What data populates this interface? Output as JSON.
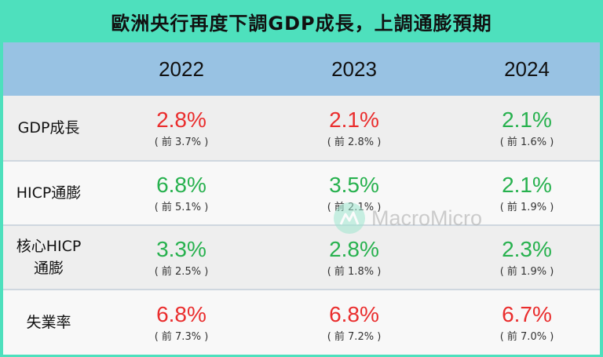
{
  "title": "歐洲央行再度下調GDP成長，上調通膨預期",
  "years": [
    "2022",
    "2023",
    "2024"
  ],
  "rows": [
    {
      "label": "GDP成長",
      "cells": [
        {
          "value": "2.8%",
          "prev": "( 前 3.7% )",
          "color": "#ea2d2d"
        },
        {
          "value": "2.1%",
          "prev": "( 前 2.8% )",
          "color": "#ea2d2d"
        },
        {
          "value": "2.1%",
          "prev": "( 前 1.6% )",
          "color": "#27b14e"
        }
      ]
    },
    {
      "label": "HICP通膨",
      "cells": [
        {
          "value": "6.8%",
          "prev": "( 前 5.1% )",
          "color": "#27b14e"
        },
        {
          "value": "3.5%",
          "prev": "( 前 2.1% )",
          "color": "#27b14e"
        },
        {
          "value": "2.1%",
          "prev": "( 前 1.9% )",
          "color": "#27b14e"
        }
      ]
    },
    {
      "label_line1": "核心HICP",
      "label_line2": "通膨",
      "cells": [
        {
          "value": "3.3%",
          "prev": "( 前 2.5% )",
          "color": "#27b14e"
        },
        {
          "value": "2.8%",
          "prev": "( 前 1.8% )",
          "color": "#27b14e"
        },
        {
          "value": "2.3%",
          "prev": "( 前 1.9% )",
          "color": "#27b14e"
        }
      ]
    },
    {
      "label": "失業率",
      "cells": [
        {
          "value": "6.8%",
          "prev": "( 前 7.3% )",
          "color": "#ea2d2d"
        },
        {
          "value": "6.8%",
          "prev": "( 前 7.2% )",
          "color": "#ea2d2d"
        },
        {
          "value": "6.7%",
          "prev": "( 前 7.0% )",
          "color": "#ea2d2d"
        }
      ]
    }
  ],
  "watermark": "MacroMicro",
  "colors": {
    "frame": "#4ee0bd",
    "header": "#98c2e3",
    "increase": "#27b14e",
    "decrease": "#ea2d2d"
  }
}
